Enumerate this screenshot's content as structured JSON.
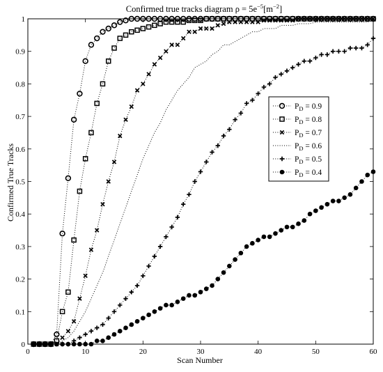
{
  "chart_data": {
    "type": "line",
    "title_prefix": "Confirmed true tracks diagram ρ = 5e",
    "title_exp": "−5",
    "title_unit_pre": "[m",
    "title_unit_exp": "−2",
    "title_unit_post": "]",
    "xlabel": "Scan Number",
    "ylabel": "Confirmed True Tracks",
    "xlim": [
      0,
      60
    ],
    "ylim": [
      0,
      1
    ],
    "xticks": [
      0,
      10,
      20,
      30,
      40,
      50,
      60
    ],
    "yticks": [
      0,
      0.1,
      0.2,
      0.3,
      0.4,
      0.5,
      0.6,
      0.7,
      0.8,
      0.9,
      1
    ],
    "xtick_labels": [
      "0",
      "10",
      "20",
      "30",
      "40",
      "50",
      "60"
    ],
    "ytick_labels": [
      "0",
      "0.1",
      "0.2",
      "0.3",
      "0.4",
      "0.5",
      "0.6",
      "0.7",
      "0.8",
      "0.9",
      "1"
    ],
    "grid": false,
    "legend_position": "right-middle",
    "line_style": "dotted",
    "x": [
      1,
      2,
      3,
      4,
      5,
      6,
      7,
      8,
      9,
      10,
      11,
      12,
      13,
      14,
      15,
      16,
      17,
      18,
      19,
      20,
      21,
      22,
      23,
      24,
      25,
      26,
      27,
      28,
      29,
      30,
      31,
      32,
      33,
      34,
      35,
      36,
      37,
      38,
      39,
      40,
      41,
      42,
      43,
      44,
      45,
      46,
      47,
      48,
      49,
      50,
      51,
      52,
      53,
      54,
      55,
      56,
      57,
      58,
      59,
      60
    ],
    "series": [
      {
        "name": "P_D = 0.9",
        "legend_main": "P",
        "legend_sub": "D",
        "legend_val": " = 0.9",
        "marker": "circle",
        "values": [
          0,
          0,
          0,
          0,
          0.03,
          0.34,
          0.51,
          0.69,
          0.77,
          0.87,
          0.92,
          0.94,
          0.96,
          0.97,
          0.98,
          0.99,
          0.995,
          1,
          1,
          1,
          1,
          1,
          1,
          1,
          1,
          1,
          1,
          1,
          1,
          1,
          1,
          1,
          1,
          1,
          1,
          1,
          1,
          1,
          1,
          1,
          1,
          1,
          1,
          1,
          1,
          1,
          1,
          1,
          1,
          1,
          1,
          1,
          1,
          1,
          1,
          1,
          1,
          1,
          1,
          1
        ]
      },
      {
        "name": "P_D = 0.8",
        "legend_main": "P",
        "legend_sub": "D",
        "legend_val": " = 0.8",
        "marker": "square",
        "values": [
          0,
          0,
          0,
          0,
          0.01,
          0.1,
          0.16,
          0.32,
          0.47,
          0.57,
          0.65,
          0.74,
          0.8,
          0.87,
          0.91,
          0.94,
          0.95,
          0.96,
          0.965,
          0.97,
          0.975,
          0.98,
          0.985,
          0.99,
          0.99,
          0.99,
          0.99,
          0.995,
          0.995,
          0.995,
          1,
          1,
          1,
          1,
          1,
          1,
          1,
          1,
          1,
          1,
          1,
          1,
          1,
          1,
          1,
          1,
          1,
          1,
          1,
          1,
          1,
          1,
          1,
          1,
          1,
          1,
          1,
          1,
          1,
          1
        ]
      },
      {
        "name": "P_D = 0.7",
        "legend_main": "P",
        "legend_sub": "D",
        "legend_val": " = 0.7",
        "marker": "x",
        "values": [
          0,
          0,
          0,
          0,
          0,
          0.02,
          0.04,
          0.07,
          0.14,
          0.21,
          0.29,
          0.35,
          0.43,
          0.5,
          0.56,
          0.64,
          0.69,
          0.73,
          0.78,
          0.8,
          0.83,
          0.86,
          0.88,
          0.9,
          0.92,
          0.92,
          0.94,
          0.96,
          0.96,
          0.97,
          0.97,
          0.97,
          0.98,
          0.985,
          0.99,
          0.99,
          0.99,
          0.99,
          0.99,
          0.99,
          0.995,
          0.995,
          0.995,
          0.995,
          0.995,
          0.995,
          1,
          1,
          1,
          1,
          1,
          1,
          1,
          1,
          1,
          1,
          1,
          1,
          1,
          1
        ]
      },
      {
        "name": "P_D = 0.6",
        "legend_main": "P",
        "legend_sub": "D",
        "legend_val": " = 0.6",
        "marker": "dot",
        "values": [
          0,
          0,
          0,
          0,
          0,
          0.01,
          0.02,
          0.04,
          0.07,
          0.1,
          0.14,
          0.18,
          0.22,
          0.27,
          0.32,
          0.37,
          0.42,
          0.47,
          0.52,
          0.57,
          0.61,
          0.65,
          0.68,
          0.72,
          0.75,
          0.78,
          0.8,
          0.82,
          0.85,
          0.86,
          0.87,
          0.89,
          0.9,
          0.92,
          0.92,
          0.93,
          0.94,
          0.95,
          0.96,
          0.96,
          0.97,
          0.97,
          0.97,
          0.98,
          0.98,
          0.98,
          0.985,
          0.985,
          0.985,
          0.99,
          0.99,
          0.99,
          0.99,
          0.99,
          0.99,
          0.99,
          0.99,
          0.99,
          0.99,
          0.995
        ]
      },
      {
        "name": "P_D = 0.5",
        "legend_main": "P",
        "legend_sub": "D",
        "legend_val": " = 0.5",
        "marker": "plus",
        "values": [
          0,
          0,
          0,
          0,
          0,
          0,
          0,
          0.01,
          0.02,
          0.03,
          0.04,
          0.05,
          0.06,
          0.08,
          0.1,
          0.12,
          0.14,
          0.16,
          0.18,
          0.21,
          0.24,
          0.27,
          0.3,
          0.33,
          0.36,
          0.39,
          0.43,
          0.46,
          0.5,
          0.53,
          0.56,
          0.59,
          0.61,
          0.64,
          0.66,
          0.69,
          0.71,
          0.74,
          0.75,
          0.77,
          0.79,
          0.8,
          0.82,
          0.83,
          0.84,
          0.85,
          0.86,
          0.87,
          0.87,
          0.88,
          0.89,
          0.89,
          0.9,
          0.9,
          0.9,
          0.91,
          0.91,
          0.91,
          0.92,
          0.94
        ]
      },
      {
        "name": "P_D = 0.4",
        "legend_main": "P",
        "legend_sub": "D",
        "legend_val": " = 0.4",
        "marker": "filled-circle",
        "values": [
          0,
          0,
          0,
          0,
          0,
          0,
          0,
          0,
          0,
          0,
          0,
          0.01,
          0.01,
          0.02,
          0.03,
          0.04,
          0.05,
          0.06,
          0.07,
          0.08,
          0.09,
          0.1,
          0.11,
          0.12,
          0.12,
          0.13,
          0.14,
          0.15,
          0.15,
          0.16,
          0.17,
          0.18,
          0.2,
          0.22,
          0.24,
          0.26,
          0.28,
          0.3,
          0.31,
          0.32,
          0.33,
          0.33,
          0.34,
          0.35,
          0.36,
          0.36,
          0.37,
          0.38,
          0.4,
          0.41,
          0.42,
          0.43,
          0.44,
          0.44,
          0.45,
          0.46,
          0.48,
          0.5,
          0.52,
          0.53
        ]
      }
    ]
  }
}
